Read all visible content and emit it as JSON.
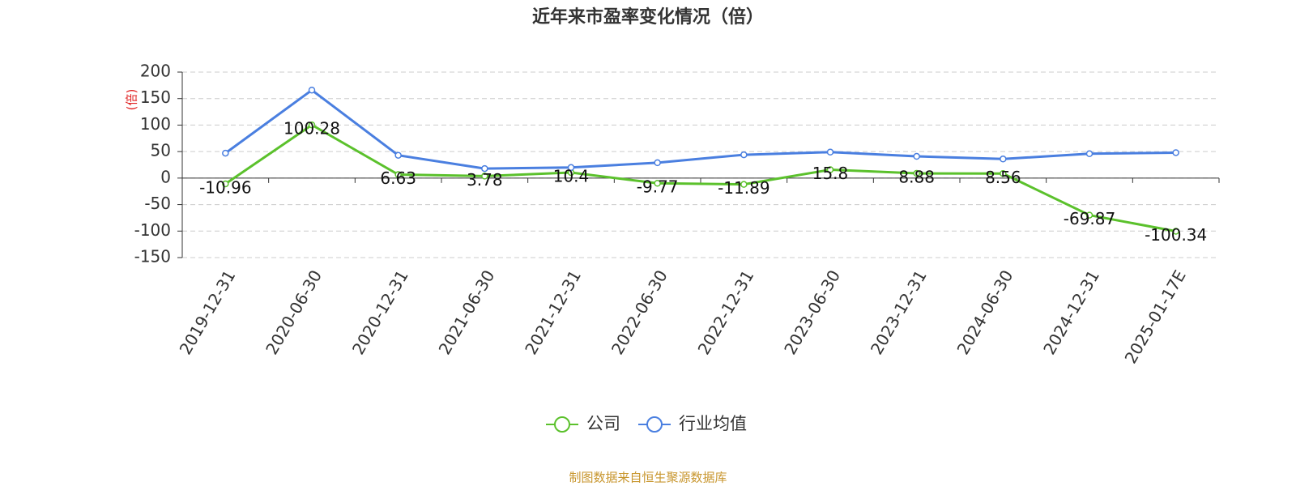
{
  "chart_data": {
    "type": "line",
    "title": "近年来市盈率变化情况（倍）",
    "y_label": "(倍)",
    "categories": [
      "2019-12-31",
      "2020-06-30",
      "2020-12-31",
      "2021-06-30",
      "2021-12-31",
      "2022-06-30",
      "2022-12-31",
      "2023-06-30",
      "2023-12-31",
      "2024-06-30",
      "2024-12-31",
      "2025-01-17E"
    ],
    "series": [
      {
        "name": "公司",
        "color": "#5bc12c",
        "show_labels": true,
        "values": [
          -10.96,
          100.28,
          6.63,
          3.78,
          10.4,
          -9.77,
          -11.89,
          15.8,
          8.88,
          8.56,
          -69.87,
          -100.34
        ]
      },
      {
        "name": "行业均值",
        "color": "#4a7fe0",
        "show_labels": false,
        "values": [
          47,
          166,
          43,
          18,
          20,
          29,
          44,
          49,
          41,
          36,
          46,
          48
        ]
      }
    ],
    "ylim": [
      -150,
      200
    ],
    "yticks": [
      -150,
      -100,
      -50,
      0,
      50,
      100,
      150,
      200
    ],
    "grid": true,
    "source": "制图数据来自恒生聚源数据库"
  }
}
